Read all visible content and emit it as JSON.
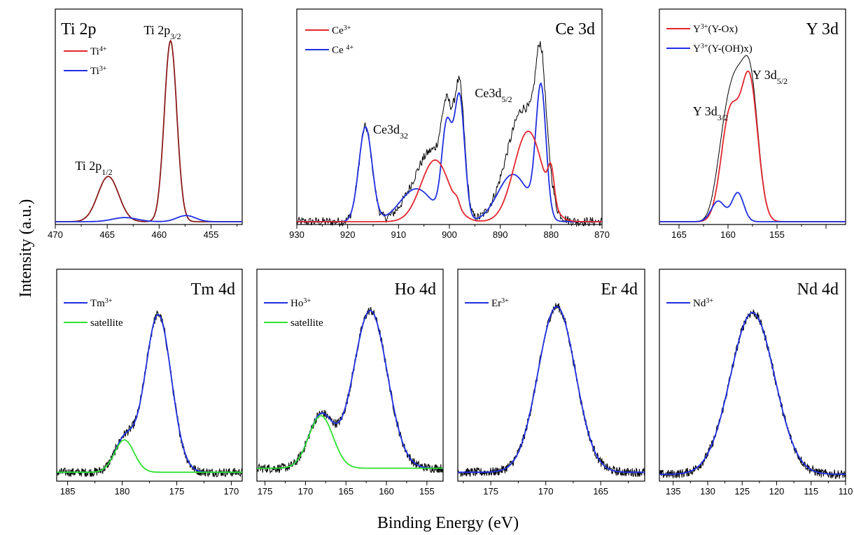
{
  "figure": {
    "ylabel": "Intensity (a.u.)",
    "xlabel": "Binding Energy (eV)"
  },
  "colors": {
    "red": "#e3262d",
    "blue": "#1f2fe0",
    "green": "#2ee02e",
    "black": "#000000",
    "darkred": "#8b1a1a"
  },
  "chart_data": [
    {
      "type": "line",
      "title": "Ti 2p",
      "xlim": [
        470,
        452
      ],
      "xticks": [
        470,
        465,
        460,
        455
      ],
      "legend": [
        {
          "sup": "4+",
          "base": "Ti",
          "tail": "",
          "color": "red"
        },
        {
          "sup": "3+",
          "base": "Ti",
          "tail": "",
          "color": "blue"
        }
      ],
      "annotations": [
        {
          "base": "Ti 2p",
          "sub": "3/2"
        },
        {
          "base": "Ti 2p",
          "sub": "1/2"
        }
      ],
      "series": [
        {
          "color": "darkred",
          "components": [
            [
              464.9,
              0.22,
              1.0
            ],
            [
              458.9,
              0.88,
              0.6
            ]
          ],
          "baseline": 0.0
        },
        {
          "color": "blue",
          "components": [
            [
              463.3,
              0.02,
              1.2
            ],
            [
              457.4,
              0.03,
              0.9
            ]
          ],
          "baseline": 0.0
        }
      ]
    },
    {
      "type": "line",
      "title": "Ce 3d",
      "xlim": [
        930,
        870
      ],
      "xticks": [
        930,
        920,
        910,
        900,
        890,
        880,
        870
      ],
      "legend": [
        {
          "sup": "3+",
          "base": "Ce",
          "tail": "",
          "color": "red"
        },
        {
          "sup": "4+",
          "base": "Ce ",
          "tail": "",
          "color": "blue"
        }
      ],
      "annotations": [
        {
          "base": "Ce3d",
          "sub": "32"
        },
        {
          "base": "Ce3d",
          "sub": "5/2"
        }
      ],
      "series": [
        {
          "color": "black",
          "noisy": true,
          "components": [
            [
              916.5,
              0.46,
              1.3
            ],
            [
              906.5,
              0.12,
              3.0
            ],
            [
              902.8,
              0.28,
              2.8
            ],
            [
              900.5,
              0.36,
              1.0
            ],
            [
              898.0,
              0.6,
              1.0
            ],
            [
              887.5,
              0.22,
              3.0
            ],
            [
              884.5,
              0.4,
              2.8
            ],
            [
              882.0,
              0.55,
              1.0
            ],
            [
              880.0,
              0.05,
              0.6
            ]
          ],
          "baseline": 0.0
        },
        {
          "color": "blue",
          "components": [
            [
              916.5,
              0.46,
              1.3
            ],
            [
              906.5,
              0.16,
              3.2
            ],
            [
              900.5,
              0.45,
              1.0
            ],
            [
              898.0,
              0.6,
              1.0
            ],
            [
              887.5,
              0.23,
              3.0
            ],
            [
              882.0,
              0.63,
              1.0
            ]
          ],
          "baseline": 0.0
        },
        {
          "color": "red",
          "components": [
            [
              902.8,
              0.3,
              2.8
            ],
            [
              898.5,
              0.03,
              0.5
            ],
            [
              884.5,
              0.44,
              2.8
            ],
            [
              880.0,
              0.16,
              0.6
            ]
          ],
          "baseline": 0.0
        }
      ]
    },
    {
      "type": "line",
      "title": "Y 3d",
      "xlim": [
        167,
        148
      ],
      "xticks": [
        165,
        160,
        155
      ],
      "legend": [
        {
          "sup": "3+",
          "base": "Y",
          "tail": "(Y-Ox)",
          "color": "red"
        },
        {
          "sup": "3+",
          "base": "Y",
          "tail": "(Y-(OH)x)",
          "color": "blue"
        }
      ],
      "annotations": [
        {
          "base": "Y 3d",
          "sub": "3/2"
        },
        {
          "base": "Y 3d",
          "sub": "5/2"
        }
      ],
      "series": [
        {
          "color": "black",
          "components": [
            [
              159.8,
              0.55,
              0.9
            ],
            [
              157.8,
              0.72,
              0.85
            ],
            [
              161.0,
              0.08,
              0.7
            ],
            [
              159.0,
              0.12,
              0.6
            ]
          ],
          "baseline": 0.0
        },
        {
          "color": "red",
          "components": [
            [
              159.8,
              0.52,
              0.9
            ],
            [
              157.8,
              0.68,
              0.85
            ]
          ],
          "baseline": 0.0
        },
        {
          "color": "blue",
          "components": [
            [
              161.0,
              0.1,
              0.7
            ],
            [
              159.0,
              0.14,
              0.6
            ]
          ],
          "baseline": 0.0
        }
      ]
    },
    {
      "type": "line",
      "title": "Tm 4d",
      "xlim": [
        186,
        169
      ],
      "xticks": [
        185,
        180,
        175,
        170
      ],
      "legend": [
        {
          "sup": "3+",
          "base": "Tm",
          "tail": "",
          "color": "blue"
        },
        {
          "sup": "",
          "base": "satellite",
          "tail": "",
          "color": "green"
        }
      ],
      "annotations": [],
      "series": [
        {
          "color": "black",
          "noisy": true,
          "components": [
            [
              176.7,
              0.78,
              1.2
            ],
            [
              179.8,
              0.16,
              0.9
            ]
          ],
          "baseline": 0.03
        },
        {
          "color": "blue",
          "components": [
            [
              176.7,
              0.78,
              1.2
            ],
            [
              179.8,
              0.16,
              0.9
            ]
          ],
          "baseline": 0.03
        },
        {
          "color": "green",
          "components": [
            [
              179.8,
              0.16,
              0.9
            ]
          ],
          "baseline": 0.03
        }
      ]
    },
    {
      "type": "line",
      "title": "Ho 4d",
      "xlim": [
        176,
        153
      ],
      "xticks": [
        175,
        170,
        165,
        160,
        155
      ],
      "legend": [
        {
          "sup": "3+",
          "base": "Ho",
          "tail": "",
          "color": "blue"
        },
        {
          "sup": "",
          "base": "satellite",
          "tail": "",
          "color": "green"
        }
      ],
      "annotations": [],
      "series": [
        {
          "color": "black",
          "noisy": true,
          "components": [
            [
              162.0,
              0.78,
              2.1
            ],
            [
              168.1,
              0.26,
              1.5
            ]
          ],
          "baseline": 0.05
        },
        {
          "color": "blue",
          "components": [
            [
              162.0,
              0.78,
              2.1
            ],
            [
              168.1,
              0.26,
              1.5
            ]
          ],
          "baseline": 0.05
        },
        {
          "color": "green",
          "components": [
            [
              168.1,
              0.26,
              1.5
            ]
          ],
          "baseline": 0.05
        }
      ]
    },
    {
      "type": "line",
      "title": "Er 4d",
      "xlim": [
        178,
        161
      ],
      "xticks": [
        175,
        170,
        165
      ],
      "legend": [
        {
          "sup": "3+",
          "base": "Er",
          "tail": "",
          "color": "blue"
        }
      ],
      "annotations": [],
      "series": [
        {
          "color": "black",
          "noisy": true,
          "components": [
            [
              169.0,
              0.82,
              1.7
            ]
          ],
          "baseline": 0.03
        },
        {
          "color": "blue",
          "components": [
            [
              169.0,
              0.82,
              1.7
            ]
          ],
          "baseline": 0.03
        }
      ]
    },
    {
      "type": "line",
      "title": "Nd 4d",
      "xlim": [
        137,
        110
      ],
      "xticks": [
        135,
        130,
        125,
        120,
        115,
        110
      ],
      "legend": [
        {
          "sup": "3+",
          "base": "Nd",
          "tail": "",
          "color": "blue"
        }
      ],
      "annotations": [],
      "series": [
        {
          "color": "black",
          "noisy": true,
          "components": [
            [
              123.5,
              0.8,
              3.2
            ]
          ],
          "baseline": 0.02
        },
        {
          "color": "blue",
          "components": [
            [
              123.5,
              0.8,
              3.2
            ]
          ],
          "baseline": 0.02
        }
      ]
    }
  ]
}
